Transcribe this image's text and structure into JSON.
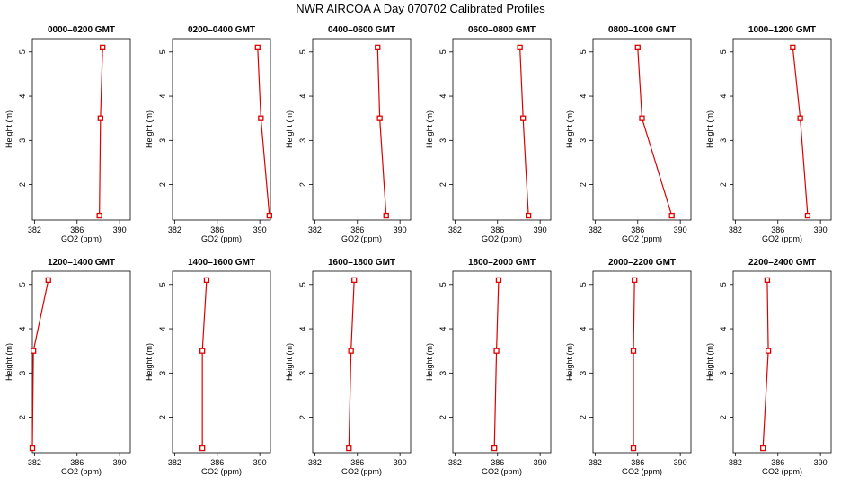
{
  "figure_title": "NWR AIRCOA A  Day 070702  Calibrated Profiles",
  "chart_data": [
    {
      "type": "line",
      "title": "0000–0200 GMT",
      "xlabel": "GO2 (ppm)",
      "ylabel": "Height (m)",
      "xlim": [
        381.8,
        391
      ],
      "ylim": [
        1.2,
        5.3
      ],
      "xticks": [
        382,
        386,
        390
      ],
      "yticks": [
        2,
        3,
        4,
        5
      ],
      "series": [
        {
          "x": [
            388.1,
            388.2,
            388.4
          ],
          "y": [
            1.3,
            3.5,
            5.1
          ]
        }
      ],
      "color": "#dd0000"
    },
    {
      "type": "line",
      "title": "0200–0400 GMT",
      "xlabel": "GO2 (ppm)",
      "ylabel": "Height (m)",
      "xlim": [
        381.8,
        391
      ],
      "ylim": [
        1.2,
        5.3
      ],
      "xticks": [
        382,
        386,
        390
      ],
      "yticks": [
        2,
        3,
        4,
        5
      ],
      "series": [
        {
          "x": [
            390.9,
            390.1,
            389.8
          ],
          "y": [
            1.3,
            3.5,
            5.1
          ]
        }
      ],
      "color": "#dd0000"
    },
    {
      "type": "line",
      "title": "0400–0600 GMT",
      "xlabel": "GO2 (ppm)",
      "ylabel": "Height (m)",
      "xlim": [
        381.8,
        391
      ],
      "ylim": [
        1.2,
        5.3
      ],
      "xticks": [
        382,
        386,
        390
      ],
      "yticks": [
        2,
        3,
        4,
        5
      ],
      "series": [
        {
          "x": [
            388.7,
            388.1,
            387.9
          ],
          "y": [
            1.3,
            3.5,
            5.1
          ]
        }
      ],
      "color": "#dd0000"
    },
    {
      "type": "line",
      "title": "0600–0800 GMT",
      "xlabel": "GO2 (ppm)",
      "ylabel": "Height (m)",
      "xlim": [
        381.8,
        391
      ],
      "ylim": [
        1.2,
        5.3
      ],
      "xticks": [
        382,
        386,
        390
      ],
      "yticks": [
        2,
        3,
        4,
        5
      ],
      "series": [
        {
          "x": [
            388.9,
            388.4,
            388.1
          ],
          "y": [
            1.3,
            3.5,
            5.1
          ]
        }
      ],
      "color": "#dd0000"
    },
    {
      "type": "line",
      "title": "0800–1000 GMT",
      "xlabel": "GO2 (ppm)",
      "ylabel": "Height (m)",
      "xlim": [
        381.8,
        391
      ],
      "ylim": [
        1.2,
        5.3
      ],
      "xticks": [
        382,
        386,
        390
      ],
      "yticks": [
        2,
        3,
        4,
        5
      ],
      "series": [
        {
          "x": [
            389.2,
            386.4,
            386.0
          ],
          "y": [
            1.3,
            3.5,
            5.1
          ]
        }
      ],
      "color": "#dd0000"
    },
    {
      "type": "line",
      "title": "1000–1200 GMT",
      "xlabel": "GO2 (ppm)",
      "ylabel": "Height (m)",
      "xlim": [
        381.8,
        391
      ],
      "ylim": [
        1.2,
        5.3
      ],
      "xticks": [
        382,
        386,
        390
      ],
      "yticks": [
        2,
        3,
        4,
        5
      ],
      "series": [
        {
          "x": [
            388.8,
            388.1,
            387.4
          ],
          "y": [
            1.3,
            3.5,
            5.1
          ]
        }
      ],
      "color": "#dd0000"
    },
    {
      "type": "line",
      "title": "1200–1400 GMT",
      "xlabel": "GO2 (ppm)",
      "ylabel": "Height (m)",
      "xlim": [
        381.8,
        391
      ],
      "ylim": [
        1.2,
        5.3
      ],
      "xticks": [
        382,
        386,
        390
      ],
      "yticks": [
        2,
        3,
        4,
        5
      ],
      "series": [
        {
          "x": [
            381.8,
            381.9,
            383.3
          ],
          "y": [
            1.3,
            3.5,
            5.1
          ]
        }
      ],
      "color": "#dd0000"
    },
    {
      "type": "line",
      "title": "1400–1600 GMT",
      "xlabel": "GO2 (ppm)",
      "ylabel": "Height (m)",
      "xlim": [
        381.8,
        391
      ],
      "ylim": [
        1.2,
        5.3
      ],
      "xticks": [
        382,
        386,
        390
      ],
      "yticks": [
        2,
        3,
        4,
        5
      ],
      "series": [
        {
          "x": [
            384.6,
            384.6,
            385.0
          ],
          "y": [
            1.3,
            3.5,
            5.1
          ]
        }
      ],
      "color": "#dd0000"
    },
    {
      "type": "line",
      "title": "1600–1800 GMT",
      "xlabel": "GO2 (ppm)",
      "ylabel": "Height (m)",
      "xlim": [
        381.8,
        391
      ],
      "ylim": [
        1.2,
        5.3
      ],
      "xticks": [
        382,
        386,
        390
      ],
      "yticks": [
        2,
        3,
        4,
        5
      ],
      "series": [
        {
          "x": [
            385.2,
            385.4,
            385.7
          ],
          "y": [
            1.3,
            3.5,
            5.1
          ]
        }
      ],
      "color": "#dd0000"
    },
    {
      "type": "line",
      "title": "1800–2000 GMT",
      "xlabel": "GO2 (ppm)",
      "ylabel": "Height (m)",
      "xlim": [
        381.8,
        391
      ],
      "ylim": [
        1.2,
        5.3
      ],
      "xticks": [
        382,
        386,
        390
      ],
      "yticks": [
        2,
        3,
        4,
        5
      ],
      "series": [
        {
          "x": [
            385.7,
            385.9,
            386.1
          ],
          "y": [
            1.3,
            3.5,
            5.1
          ]
        }
      ],
      "color": "#dd0000"
    },
    {
      "type": "line",
      "title": "2000–2200 GMT",
      "xlabel": "GO2 (ppm)",
      "ylabel": "Height (m)",
      "xlim": [
        381.8,
        391
      ],
      "ylim": [
        1.2,
        5.3
      ],
      "xticks": [
        382,
        386,
        390
      ],
      "yticks": [
        2,
        3,
        4,
        5
      ],
      "series": [
        {
          "x": [
            385.6,
            385.6,
            385.7
          ],
          "y": [
            1.3,
            3.5,
            5.1
          ]
        }
      ],
      "color": "#dd0000"
    },
    {
      "type": "line",
      "title": "2200–2400 GMT",
      "xlabel": "GO2 (ppm)",
      "ylabel": "Height (m)",
      "xlim": [
        381.8,
        391
      ],
      "ylim": [
        1.2,
        5.3
      ],
      "xticks": [
        382,
        386,
        390
      ],
      "yticks": [
        2,
        3,
        4,
        5
      ],
      "series": [
        {
          "x": [
            384.6,
            385.1,
            385.0
          ],
          "y": [
            1.3,
            3.5,
            5.1
          ]
        }
      ],
      "color": "#dd0000"
    }
  ]
}
